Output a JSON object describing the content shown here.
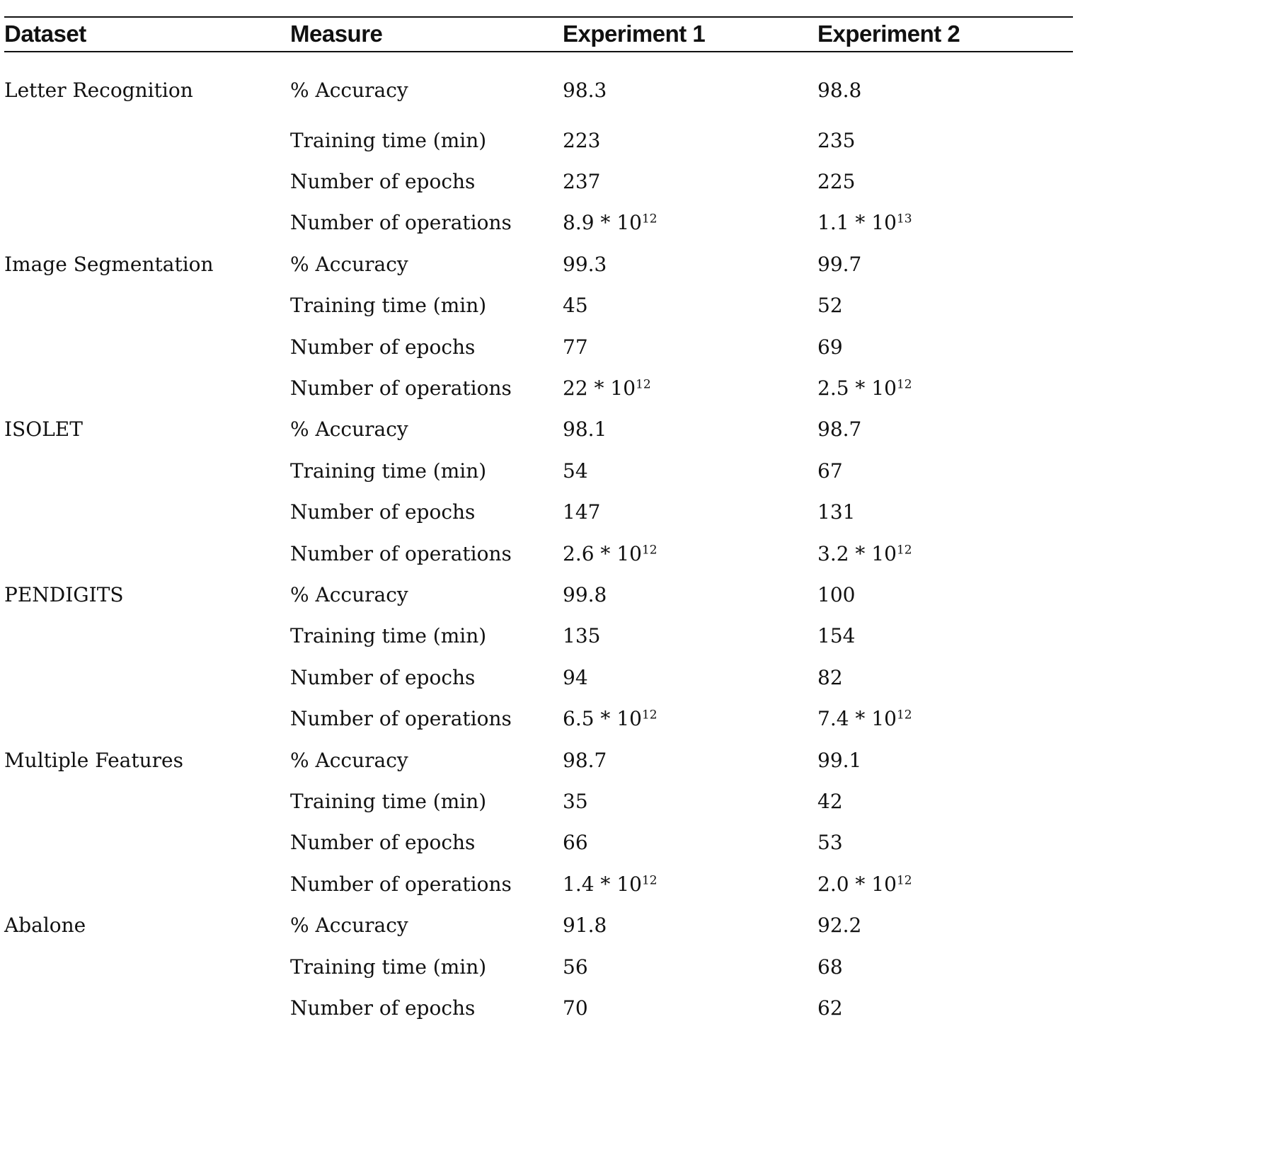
{
  "table": {
    "headers": [
      "Dataset",
      "Measure",
      "Experiment 1",
      "Experiment 2"
    ],
    "rows": [
      {
        "dataset": "Letter Recognition",
        "measure": "% Accuracy",
        "exp1": "98.3",
        "exp2": "98.8"
      },
      {
        "dataset": "",
        "measure": "Training time (min)",
        "exp1": "223",
        "exp2": "235"
      },
      {
        "dataset": "",
        "measure": "Number of epochs",
        "exp1": "237",
        "exp2": "225"
      },
      {
        "dataset": "",
        "measure": "Number of operations",
        "exp1": "8.9 * 10",
        "exp1_exp": "12",
        "exp2": "1.1 * 10",
        "exp2_exp": "13"
      },
      {
        "dataset": "Image Segmentation",
        "measure": "% Accuracy",
        "exp1": "99.3",
        "exp2": "99.7"
      },
      {
        "dataset": "",
        "measure": "Training time (min)",
        "exp1": "45",
        "exp2": "52"
      },
      {
        "dataset": "",
        "measure": "Number of epochs",
        "exp1": "77",
        "exp2": "69"
      },
      {
        "dataset": "",
        "measure": "Number of operations",
        "exp1": "22 * 10",
        "exp1_exp": "12",
        "exp2": "2.5 * 10",
        "exp2_exp": "12"
      },
      {
        "dataset": "ISOLET",
        "measure": "% Accuracy",
        "exp1": "98.1",
        "exp2": "98.7"
      },
      {
        "dataset": "",
        "measure": "Training time (min)",
        "exp1": "54",
        "exp2": "67"
      },
      {
        "dataset": "",
        "measure": "Number of epochs",
        "exp1": "147",
        "exp2": "131"
      },
      {
        "dataset": "",
        "measure": "Number of operations",
        "exp1": "2.6 * 10",
        "exp1_exp": "12",
        "exp2": "3.2 * 10",
        "exp2_exp": "12"
      },
      {
        "dataset": "PENDIGITS",
        "measure": "% Accuracy",
        "exp1": "99.8",
        "exp2": "100"
      },
      {
        "dataset": "",
        "measure": "Training time (min)",
        "exp1": "135",
        "exp2": "154"
      },
      {
        "dataset": "",
        "measure": "Number of epochs",
        "exp1": "94",
        "exp2": "82"
      },
      {
        "dataset": "",
        "measure": "Number of operations",
        "exp1": "6.5 * 10",
        "exp1_exp": "12",
        "exp2": "7.4 * 10",
        "exp2_exp": "12"
      },
      {
        "dataset": "Multiple Features",
        "measure": "% Accuracy",
        "exp1": "98.7",
        "exp2": "99.1"
      },
      {
        "dataset": "",
        "measure": "Training time (min)",
        "exp1": "35",
        "exp2": "42"
      },
      {
        "dataset": "",
        "measure": "Number of epochs",
        "exp1": "66",
        "exp2": "53"
      },
      {
        "dataset": "",
        "measure": "Number of operations",
        "exp1": "1.4 * 10",
        "exp1_exp": "12",
        "exp2": "2.0 * 10",
        "exp2_exp": "12"
      },
      {
        "dataset": "Abalone",
        "measure": "% Accuracy",
        "exp1": "91.8",
        "exp2": "92.2"
      },
      {
        "dataset": "",
        "measure": "Training time (min)",
        "exp1": "56",
        "exp2": "68"
      },
      {
        "dataset": "",
        "measure": "Number of epochs",
        "exp1": "70",
        "exp2": "62"
      }
    ]
  }
}
